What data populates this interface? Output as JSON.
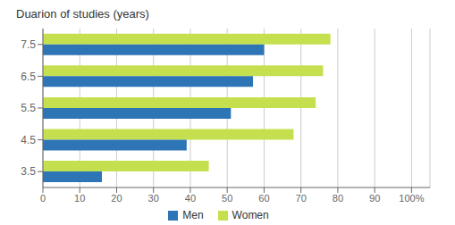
{
  "chart_data": {
    "type": "bar",
    "orientation": "horizontal",
    "title": "Duarion of studies (years)",
    "categories": [
      "3.5",
      "4.5",
      "5.5",
      "6.5",
      "7.5"
    ],
    "series": [
      {
        "name": "Men",
        "color": "#2e75b6",
        "values": [
          16,
          39,
          51,
          57,
          60
        ]
      },
      {
        "name": "Women",
        "color": "#c5e04e",
        "values": [
          45,
          68,
          74,
          76,
          78
        ]
      }
    ],
    "xlim": [
      0,
      105
    ],
    "xticks": [
      0,
      10,
      20,
      30,
      40,
      50,
      60,
      70,
      80,
      90,
      {
        "value": 100,
        "label": "100%"
      }
    ],
    "grid": true,
    "legend": "bottom"
  }
}
